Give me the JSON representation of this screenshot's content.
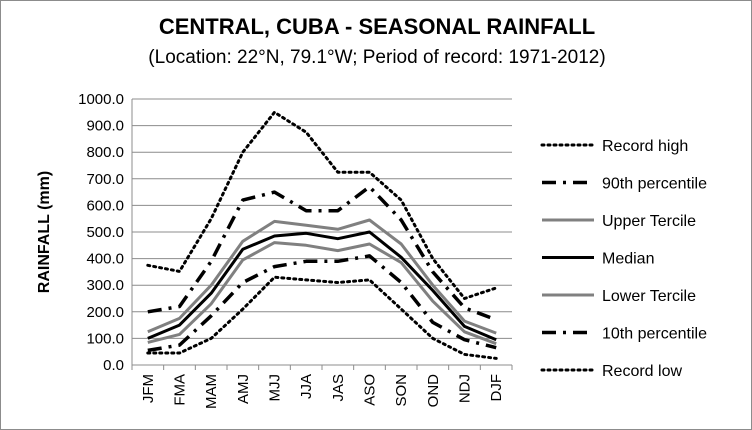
{
  "chart_data": {
    "type": "line",
    "title": "CENTRAL, CUBA - SEASONAL RAINFALL",
    "subtitle": "(Location: 22°N, 79.1°W; Period of record: 1971-2012)",
    "xlabel": "",
    "ylabel": "RAINFALL (mm)",
    "ylim": [
      0,
      1000
    ],
    "yticks": [
      "0.0",
      "100.0",
      "200.0",
      "300.0",
      "400.0",
      "500.0",
      "600.0",
      "700.0",
      "800.0",
      "900.0",
      "1000.0"
    ],
    "categories": [
      "JFM",
      "FMA",
      "MAM",
      "AMJ",
      "MJJ",
      "JJA",
      "JAS",
      "ASO",
      "SON",
      "OND",
      "NDJ",
      "DJF"
    ],
    "grid": "horizontal",
    "legend_position": "right",
    "series": [
      {
        "name": "Record high",
        "style": "dotted",
        "color": "#000000",
        "values": [
          375,
          352,
          550,
          800,
          950,
          875,
          725,
          725,
          620,
          400,
          250,
          290
        ]
      },
      {
        "name": "90th percentile",
        "style": "dash-dot",
        "color": "#000000",
        "values": [
          200,
          220,
          390,
          620,
          650,
          580,
          580,
          670,
          545,
          350,
          215,
          170
        ]
      },
      {
        "name": "Upper Tercile",
        "style": "solid",
        "color": "#808080",
        "values": [
          125,
          175,
          300,
          465,
          540,
          525,
          510,
          545,
          455,
          300,
          165,
          120
        ]
      },
      {
        "name": "Median",
        "style": "solid",
        "color": "#000000",
        "values": [
          100,
          150,
          270,
          435,
          485,
          495,
          475,
          500,
          405,
          280,
          145,
          95
        ]
      },
      {
        "name": "Lower Tercile",
        "style": "solid",
        "color": "#808080",
        "values": [
          85,
          115,
          230,
          395,
          460,
          450,
          430,
          455,
          385,
          240,
          125,
          80
        ]
      },
      {
        "name": "10th percentile",
        "style": "dash-dot",
        "color": "#000000",
        "values": [
          55,
          75,
          185,
          310,
          370,
          390,
          390,
          410,
          310,
          160,
          95,
          65
        ]
      },
      {
        "name": "Record low",
        "style": "dotted",
        "color": "#000000",
        "values": [
          45,
          45,
          100,
          210,
          330,
          320,
          310,
          320,
          210,
          100,
          40,
          25
        ]
      }
    ]
  }
}
